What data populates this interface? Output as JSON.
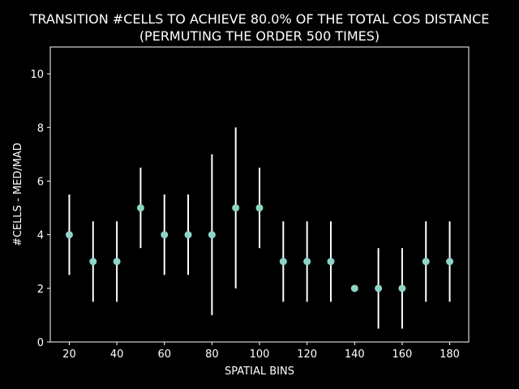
{
  "colors": {
    "background": "#000000",
    "foreground": "#ffffff",
    "marker": "#8dd3c7",
    "errorbar": "#ffffff"
  },
  "chart_data": {
    "type": "scatter",
    "title": "TRANSITION #CELLS TO ACHIEVE 80.0% OF THE TOTAL COS DISTANCE",
    "subtitle": "(PERMUTING THE ORDER 500 TIMES)",
    "xlabel": "SPATIAL BINS",
    "ylabel": "#CELLS - MED/MAD",
    "xlim": [
      12,
      188
    ],
    "ylim": [
      0,
      11
    ],
    "xticks": [
      20,
      40,
      60,
      80,
      100,
      120,
      140,
      160,
      180
    ],
    "yticks": [
      0,
      2,
      4,
      6,
      8,
      10
    ],
    "grid": false,
    "series": [
      {
        "x": [
          20,
          30,
          40,
          50,
          60,
          70,
          80,
          90,
          100,
          110,
          120,
          130,
          140,
          150,
          160,
          170,
          180
        ],
        "y": [
          4,
          3,
          3,
          5,
          4,
          4,
          4,
          5,
          5,
          3,
          3,
          3,
          2,
          2,
          2,
          3,
          3
        ],
        "yerr": [
          1.5,
          1.5,
          1.5,
          1.5,
          1.5,
          1.5,
          3,
          3,
          1.5,
          1.5,
          1.5,
          1.5,
          0,
          1.5,
          1.5,
          1.5,
          1.5
        ]
      }
    ]
  }
}
